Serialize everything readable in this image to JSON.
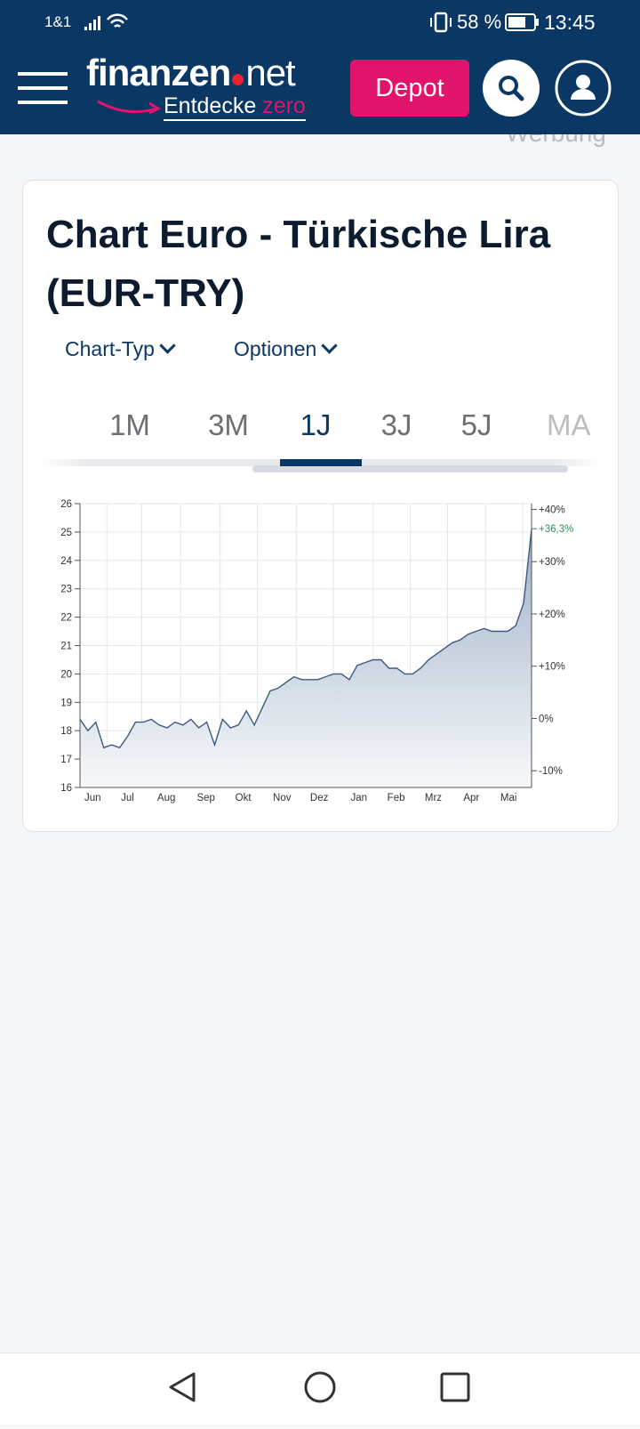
{
  "status_bar": {
    "carrier": "1&1",
    "battery": "58 %",
    "time": "13:45"
  },
  "header": {
    "logo_main": "finanzen",
    "logo_suffix": "net",
    "tagline": "Entdecke",
    "tagline_accent": "zero",
    "depot_button": "Depot"
  },
  "ad_label": "Werbung",
  "card": {
    "title": "Chart Euro - Türkische Lira (EUR-TRY)",
    "menus": [
      "Chart-Typ",
      "Optionen"
    ],
    "tabs": [
      "1M",
      "3M",
      "1J",
      "3J",
      "5J",
      "MA"
    ]
  },
  "chart_data": {
    "type": "line",
    "values": [
      18.4,
      18.0,
      18.3,
      17.4,
      17.5,
      17.4,
      17.8,
      18.3,
      18.3,
      18.4,
      18.2,
      18.1,
      18.3,
      18.2,
      18.4,
      18.1,
      18.3,
      17.5,
      18.4,
      18.1,
      18.2,
      18.7,
      18.2,
      18.8,
      19.4,
      19.5,
      19.7,
      19.9,
      19.8,
      19.8,
      19.8,
      19.9,
      20.0,
      20.0,
      19.8,
      20.3,
      20.4,
      20.5,
      20.5,
      20.2,
      20.2,
      20.0,
      20.0,
      20.2,
      20.5,
      20.7,
      20.9,
      21.1,
      21.2,
      21.4,
      21.5,
      21.6,
      21.5,
      21.5,
      21.5,
      21.7,
      22.5,
      25.1
    ],
    "color": "#3d5a80",
    "xlim": [
      0,
      57
    ],
    "xticks": [
      {
        "value": 1.6,
        "label": "Jun"
      },
      {
        "value": 6.0,
        "label": "Jul"
      },
      {
        "value": 10.9,
        "label": "Aug"
      },
      {
        "value": 15.9,
        "label": "Sep"
      },
      {
        "value": 20.6,
        "label": "Okt"
      },
      {
        "value": 25.5,
        "label": "Nov"
      },
      {
        "value": 30.2,
        "label": "Dez"
      },
      {
        "value": 35.2,
        "label": "Jan"
      },
      {
        "value": 39.9,
        "label": "Feb"
      },
      {
        "value": 44.6,
        "label": "Mrz"
      },
      {
        "value": 49.4,
        "label": "Apr"
      },
      {
        "value": 54.1,
        "label": "Mai"
      }
    ],
    "ylim": [
      16,
      26
    ],
    "yticks": [
      16,
      17,
      18,
      19,
      20,
      21,
      22,
      23,
      24,
      25,
      26
    ],
    "y2lim": [
      -13.2,
      41.1
    ],
    "y2ticks": [
      {
        "value": 40,
        "label": "+40%"
      },
      {
        "value": 30,
        "label": "+30%"
      },
      {
        "value": 20,
        "label": "+20%"
      },
      {
        "value": 10,
        "label": "+10%"
      },
      {
        "value": 0,
        "label": "0%"
      },
      {
        "value": -10,
        "label": "-10%"
      }
    ],
    "annotation": {
      "value": 36.3,
      "label": "+36,3%"
    },
    "grid": true
  }
}
